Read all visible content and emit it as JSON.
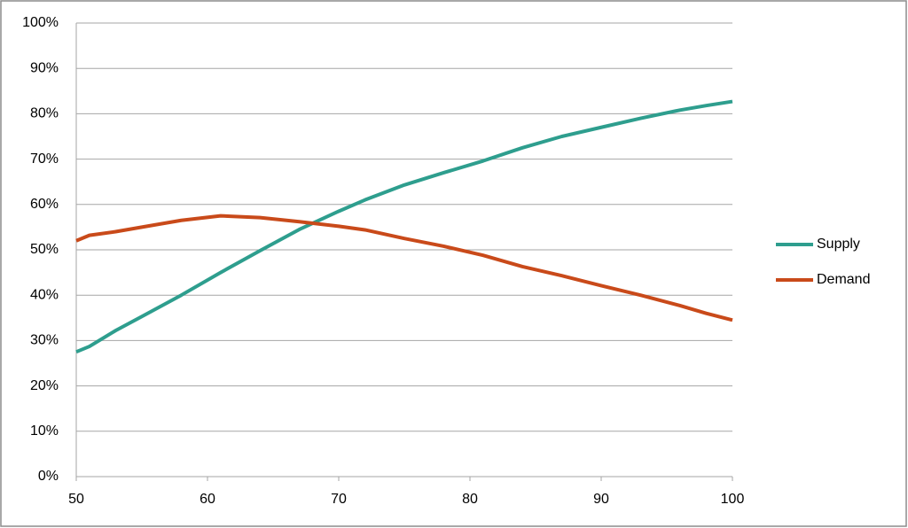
{
  "chart_data": {
    "type": "line",
    "x": [
      50,
      51,
      53,
      55,
      58,
      61,
      64,
      67,
      70,
      72,
      75,
      78,
      81,
      84,
      87,
      90,
      93,
      96,
      98,
      100
    ],
    "series": [
      {
        "name": "Supply",
        "color": "#2e9e8e",
        "values": [
          27.5,
          28.7,
          32.2,
          35.3,
          40,
          45,
          49.8,
          54.5,
          58.5,
          61,
          64.3,
          67,
          69.6,
          72.5,
          75,
          77,
          79,
          80.8,
          81.8,
          82.7
        ]
      },
      {
        "name": "Demand",
        "color": "#c94a1a",
        "values": [
          52,
          53.2,
          54,
          55,
          56.5,
          57.5,
          57.1,
          56.2,
          55.2,
          54.4,
          52.5,
          50.8,
          48.8,
          46.3,
          44.3,
          42.1,
          40,
          37.7,
          36,
          34.5
        ]
      }
    ],
    "xlim": [
      50,
      100
    ],
    "xticks": [
      50,
      60,
      70,
      80,
      90,
      100
    ],
    "ylim": [
      0,
      100
    ],
    "yticks": [
      {
        "value": 0,
        "label": "0%"
      },
      {
        "value": 10,
        "label": "10%"
      },
      {
        "value": 20,
        "label": "20%"
      },
      {
        "value": 30,
        "label": "30%"
      },
      {
        "value": 40,
        "label": "40%"
      },
      {
        "value": 50,
        "label": "50%"
      },
      {
        "value": 60,
        "label": "60%"
      },
      {
        "value": 70,
        "label": "70%"
      },
      {
        "value": 80,
        "label": "80%"
      },
      {
        "value": 90,
        "label": "90%"
      },
      {
        "value": 100,
        "label": "100%"
      }
    ],
    "grid": true,
    "legend": "right"
  }
}
